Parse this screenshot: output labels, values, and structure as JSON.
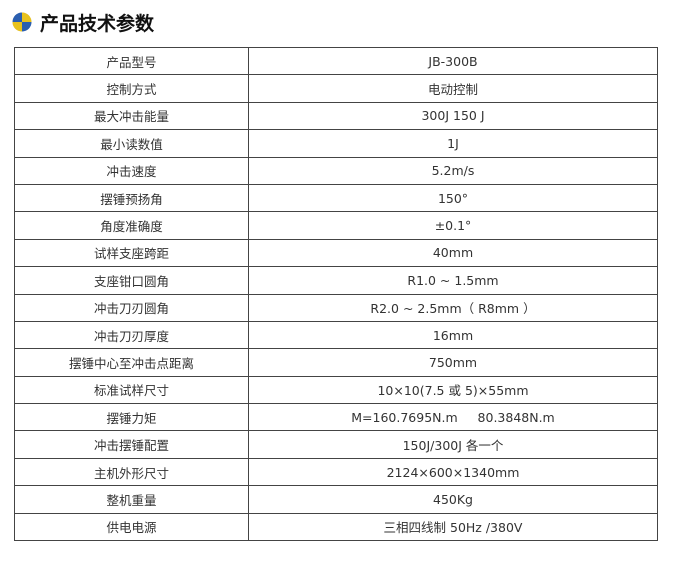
{
  "header": {
    "title": "产品技术参数"
  },
  "table": {
    "rows": [
      [
        "产品型号",
        "JB-300B"
      ],
      [
        "控制方式",
        "电动控制"
      ],
      [
        "最大冲击能量",
        "300J 150 J"
      ],
      [
        "最小读数值",
        "1J"
      ],
      [
        "冲击速度",
        "5.2m/s"
      ],
      [
        "摆锤预扬角",
        "150°"
      ],
      [
        "角度准确度",
        "±0.1°"
      ],
      [
        "试样支座跨距",
        "40mm"
      ],
      [
        "支座钳口圆角",
        "R1.0 ~ 1.5mm"
      ],
      [
        "冲击刀刃圆角",
        "R2.0 ~ 2.5mm（ R8mm ）"
      ],
      [
        "冲击刀刃厚度",
        "16mm"
      ],
      [
        "摆锤中心至冲击点距离",
        "750mm"
      ],
      [
        "标准试样尺寸",
        "10×10(7.5 或 5)×55mm"
      ],
      [
        "摆锤力矩",
        "M=160.7695N.m     80.3848N.m"
      ],
      [
        "冲击摆锤配置",
        "150J/300J 各一个"
      ],
      [
        "主机外形尺寸",
        "2124×600×1340mm"
      ],
      [
        "整机重量",
        "450Kg"
      ],
      [
        "供电电源",
        "三相四线制 50Hz /380V"
      ]
    ]
  }
}
